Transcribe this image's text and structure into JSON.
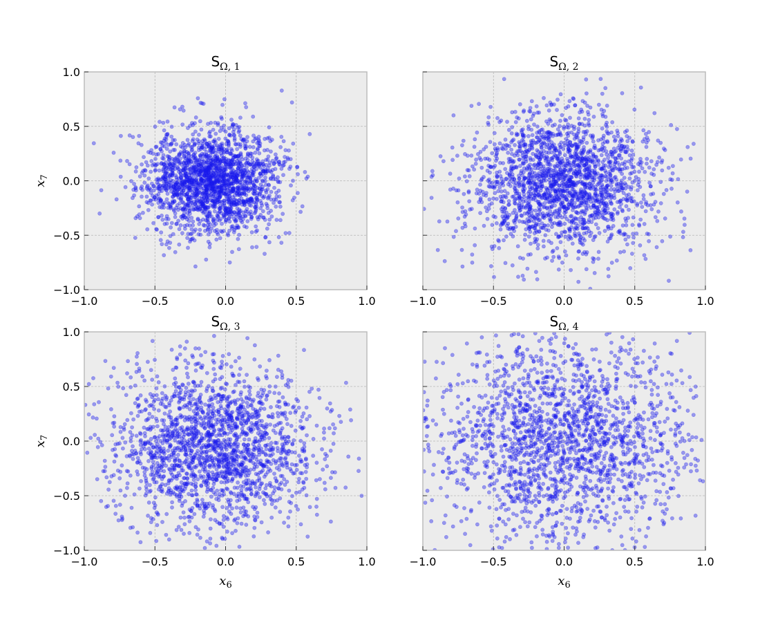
{
  "chart_data": {
    "type": "scatter",
    "figure": {
      "xlabel_main": "x",
      "xlabel_sub": "6",
      "ylabel_main": "x",
      "ylabel_sub": "7"
    },
    "colors": {
      "points": "#1a1aee",
      "panel_bg": "#ececec",
      "grid": "#b5b5b5",
      "frame": "#bcbcbc"
    },
    "grid": true,
    "point_alpha": 0.4,
    "subplots": [
      {
        "title_main": "S",
        "title_sub": "Ω, 1",
        "xlim": [
          -1,
          1
        ],
        "ylim": [
          -1,
          1
        ],
        "xticks": [
          "−1.0",
          "−0.5",
          "0.0",
          "0.5",
          "1.0"
        ],
        "yticks": [
          "1.0",
          "0.5",
          "0.0",
          "−0.5",
          "−1.0"
        ],
        "distribution": {
          "n": 2000,
          "mean_x": -0.1,
          "mean_y": 0.0,
          "sd_x": 0.24,
          "sd_y": 0.24,
          "seed": 11
        }
      },
      {
        "title_main": "S",
        "title_sub": "Ω, 2",
        "xlim": [
          -1,
          1
        ],
        "ylim": [
          -1,
          1
        ],
        "xticks": [
          "−1.0",
          "−0.5",
          "0.0",
          "0.5",
          "1.0"
        ],
        "yticks": [],
        "distribution": {
          "n": 2000,
          "mean_x": -0.02,
          "mean_y": -0.02,
          "sd_x": 0.32,
          "sd_y": 0.32,
          "seed": 23
        }
      },
      {
        "title_main": "S",
        "title_sub": "Ω, 3",
        "xlim": [
          -1,
          1
        ],
        "ylim": [
          -1,
          1
        ],
        "xticks": [
          "−1.0",
          "−0.5",
          "0.0",
          "0.5",
          "1.0"
        ],
        "yticks": [
          "1.0",
          "0.5",
          "0.0",
          "−0.5",
          "−1.0"
        ],
        "distribution": {
          "n": 2000,
          "mean_x": -0.08,
          "mean_y": -0.05,
          "sd_x": 0.36,
          "sd_y": 0.38,
          "seed": 37
        }
      },
      {
        "title_main": "S",
        "title_sub": "Ω, 4",
        "xlim": [
          -1,
          1
        ],
        "ylim": [
          -1,
          1
        ],
        "xticks": [
          "−1.0",
          "−0.5",
          "0.0",
          "0.5",
          "1.0"
        ],
        "yticks": [],
        "distribution": {
          "n": 2000,
          "mean_x": 0.0,
          "mean_y": 0.0,
          "sd_x": 0.46,
          "sd_y": 0.46,
          "seed": 53
        }
      }
    ]
  }
}
